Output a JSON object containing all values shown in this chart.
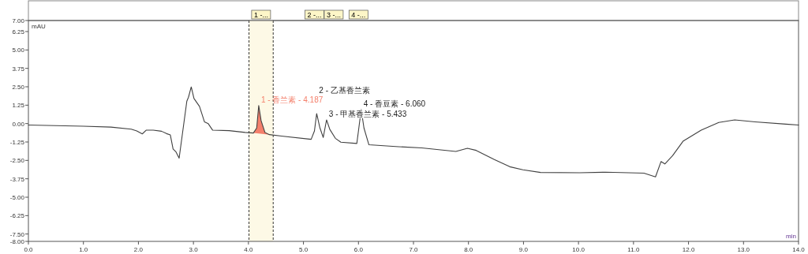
{
  "chart_data": {
    "type": "line",
    "ylabel": "mAU",
    "xlabel": "min",
    "xlim": [
      0,
      14
    ],
    "ylim": [
      -8,
      7
    ],
    "xticks": [
      {
        "value": 0,
        "label": "0.0"
      },
      {
        "value": 1,
        "label": "1.0"
      },
      {
        "value": 2,
        "label": "2.0"
      },
      {
        "value": 3,
        "label": "3.0"
      },
      {
        "value": 4,
        "label": "4.0"
      },
      {
        "value": 5,
        "label": "5.0"
      },
      {
        "value": 6,
        "label": "6.0"
      },
      {
        "value": 7,
        "label": "7.0"
      },
      {
        "value": 8,
        "label": "8.0"
      },
      {
        "value": 9,
        "label": "9.0"
      },
      {
        "value": 10,
        "label": "10.0"
      },
      {
        "value": 11,
        "label": "11.0"
      },
      {
        "value": 12,
        "label": "12.0"
      },
      {
        "value": 13,
        "label": "13.0"
      },
      {
        "value": 14,
        "label": "14.0"
      }
    ],
    "yticks": [
      {
        "value": 7,
        "label": "7.00"
      },
      {
        "value": 6.25,
        "label": "6.25"
      },
      {
        "value": 5,
        "label": "5.00"
      },
      {
        "value": 3.75,
        "label": "3.75"
      },
      {
        "value": 2.5,
        "label": "2.50"
      },
      {
        "value": 1.25,
        "label": "1.25"
      },
      {
        "value": 0,
        "label": "0.00"
      },
      {
        "value": -1.25,
        "label": "-1.25"
      },
      {
        "value": -2.5,
        "label": "-2.50"
      },
      {
        "value": -3.75,
        "label": "-3.75"
      },
      {
        "value": -5,
        "label": "-5.00"
      },
      {
        "value": -6.25,
        "label": "-6.25"
      },
      {
        "value": -7.5,
        "label": "-7.50"
      },
      {
        "value": -8,
        "label": "-8.00"
      }
    ],
    "series": [
      {
        "color": "#404040",
        "x": [
          0,
          1.0,
          1.5,
          1.87,
          1.97,
          2.07,
          2.14,
          2.27,
          2.42,
          2.51,
          2.58,
          2.63,
          2.68,
          2.74,
          2.88,
          2.91,
          2.96,
          3.01,
          3.11,
          3.2,
          3.27,
          3.35,
          3.65,
          3.94,
          4.09,
          4.15,
          4.187,
          4.23,
          4.3,
          4.38,
          4.6,
          5.14,
          5.2,
          5.24,
          5.3,
          5.36,
          5.42,
          5.48,
          5.58,
          5.68,
          5.97,
          6.0,
          6.05,
          6.1,
          6.19,
          6.73,
          7.15,
          7.77,
          7.98,
          8.14,
          8.47,
          8.75,
          8.99,
          9.31,
          10.02,
          10.49,
          11.19,
          11.4,
          11.5,
          11.57,
          11.71,
          11.9,
          12.23,
          12.55,
          12.84,
          13.21,
          13.77,
          14
        ],
        "values": [
          -0.1,
          -0.18,
          -0.24,
          -0.38,
          -0.5,
          -0.7,
          -0.45,
          -0.45,
          -0.52,
          -0.68,
          -0.77,
          -1.72,
          -1.91,
          -2.35,
          1.52,
          1.79,
          2.49,
          1.7,
          1.17,
          0.12,
          -0.01,
          -0.45,
          -0.48,
          -0.6,
          -0.64,
          -0.3,
          1.22,
          0.2,
          -0.6,
          -0.75,
          -0.85,
          -1.07,
          -0.5,
          0.68,
          -0.3,
          -0.94,
          0.25,
          -0.4,
          -1.0,
          -1.26,
          -1.35,
          -0.5,
          0.96,
          -0.3,
          -1.44,
          -1.57,
          -1.65,
          -1.89,
          -1.68,
          -1.82,
          -2.44,
          -2.93,
          -3.14,
          -3.32,
          -3.34,
          -3.3,
          -3.37,
          -3.62,
          -2.58,
          -2.74,
          -2.18,
          -1.2,
          -0.45,
          0.08,
          0.25,
          0.12,
          -0.04,
          -0.1
        ]
      },
      {
        "type": "area",
        "name": "1 - 香兰素 - 4.187",
        "color": "#f4806c",
        "x": [
          4.09,
          4.15,
          4.187,
          4.23,
          4.3,
          4.38
        ],
        "values": [
          -0.64,
          -0.3,
          1.22,
          0.2,
          -0.6,
          -0.75
        ]
      }
    ],
    "bands": [
      {
        "axis": "x",
        "from": 4.01,
        "to": 4.45,
        "label": "1 -...",
        "color": "#fdf9e6"
      }
    ],
    "annotations": [
      {
        "text": "2 -...",
        "x": 5.2
      },
      {
        "text": "3 -...",
        "x": 5.55
      },
      {
        "text": "4 -...",
        "x": 6.0
      },
      {
        "text": "2 - 乙基香兰素",
        "x": 5.24,
        "y": 0.68
      },
      {
        "text": "3 - 甲基香兰素 - 5.433",
        "x": 5.42,
        "y": 0.25
      },
      {
        "text": "4 - 香豆素 - 6.060",
        "x": 6.05,
        "y": 0.96
      }
    ]
  }
}
